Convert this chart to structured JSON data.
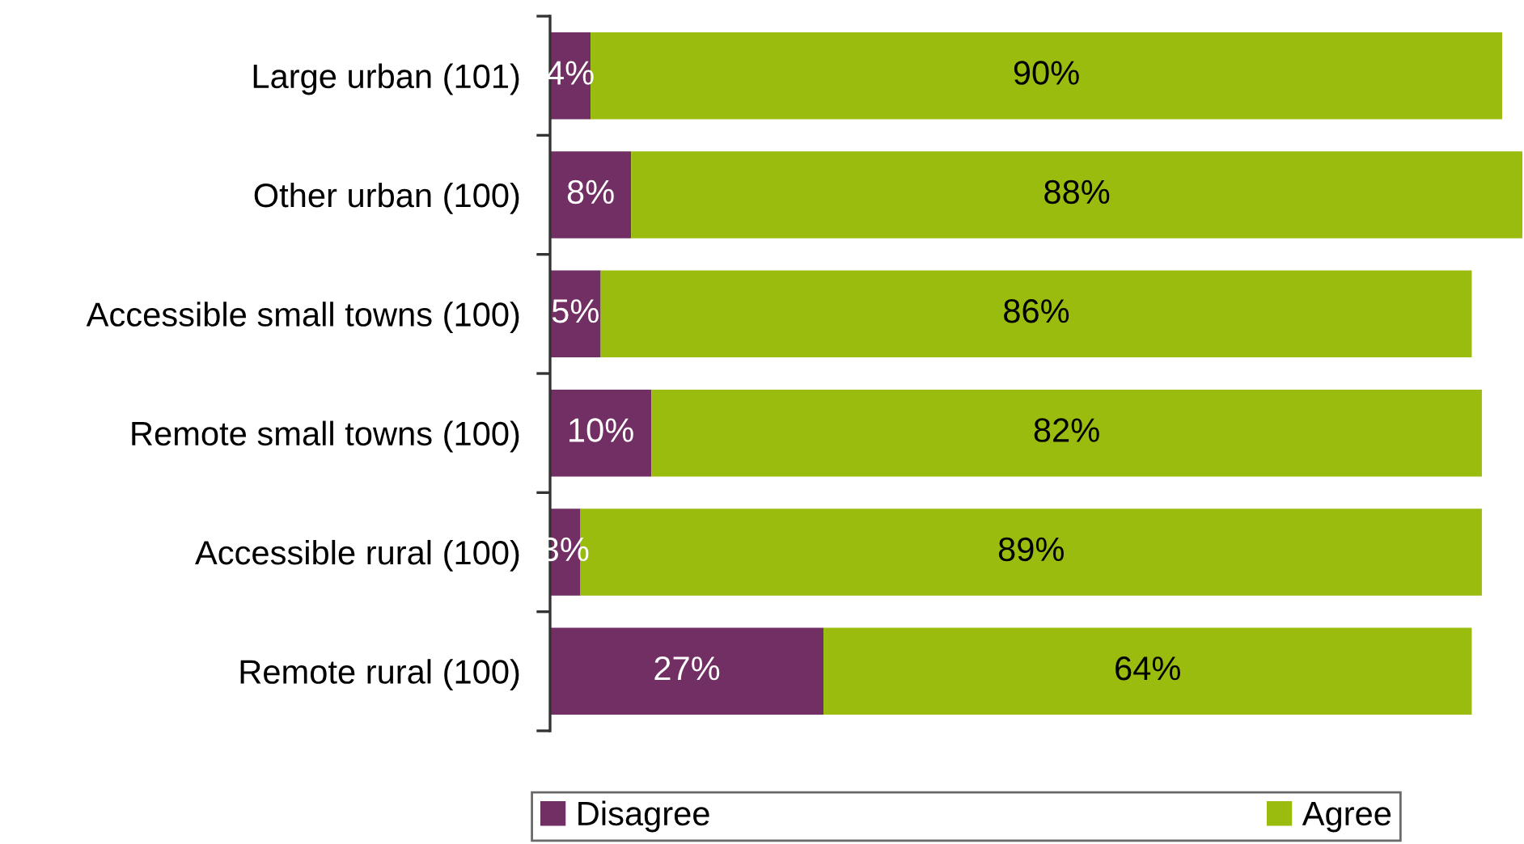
{
  "chart_data": {
    "type": "bar",
    "orientation": "horizontal",
    "stacked": true,
    "categories": [
      "Large urban (101)",
      "Other urban (100)",
      "Accessible small towns (100)",
      "Remote small towns (100)",
      "Accessible rural (100)",
      "Remote rural (100)"
    ],
    "series": [
      {
        "name": "Disagree",
        "color": "#722f64",
        "values": [
          4,
          8,
          5,
          10,
          3,
          27
        ],
        "value_labels": [
          "4%",
          "8%",
          "5%",
          "10%",
          "3%",
          "27%"
        ]
      },
      {
        "name": "Agree",
        "color": "#99bc0f",
        "values": [
          90,
          88,
          86,
          82,
          89,
          64
        ],
        "value_labels": [
          "90%",
          "88%",
          "86%",
          "82%",
          "89%",
          "64%"
        ]
      }
    ],
    "xlim": [
      0,
      96
    ],
    "tick_labels": "y",
    "legend": "bottom"
  }
}
